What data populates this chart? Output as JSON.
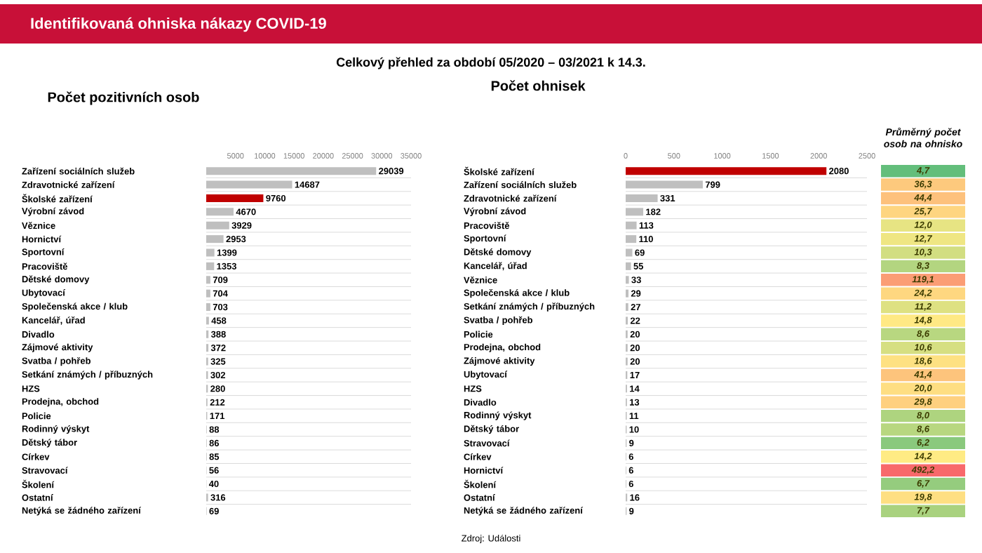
{
  "chart_data": [
    {
      "type": "bar",
      "orientation": "horizontal",
      "title": "Počet pozitivních osob",
      "categories": [
        "Zařízení sociálních služeb",
        "Zdravotnické zařízení",
        "Školské zařízení",
        "Výrobní závod",
        "Věznice",
        "Hornictví",
        "Sportovní",
        "Pracoviště",
        "Dětské domovy",
        "Ubytovací",
        "Společenská akce / klub",
        "Kancelář, úřad",
        "Divadlo",
        "Zájmové aktivity",
        "Svatba / pohřeb",
        "Setkání známých / příbuzných",
        "HZS",
        "Prodejna, obchod",
        "Policie",
        "Rodinný výskyt",
        "Dětský tábor",
        "Církev",
        "Stravovací",
        "Školení",
        "Ostatní",
        "Netýká se žádného zařízení"
      ],
      "values": [
        29039,
        14687,
        9760,
        4670,
        3929,
        2953,
        1399,
        1353,
        709,
        704,
        703,
        458,
        388,
        372,
        325,
        302,
        280,
        212,
        171,
        88,
        86,
        85,
        56,
        40,
        316,
        69
      ],
      "colors": [
        "#bfbfbf",
        "#bfbfbf",
        "#c00000",
        "#bfbfbf",
        "#bfbfbf",
        "#bfbfbf",
        "#bfbfbf",
        "#bfbfbf",
        "#bfbfbf",
        "#bfbfbf",
        "#bfbfbf",
        "#bfbfbf",
        "#bfbfbf",
        "#bfbfbf",
        "#bfbfbf",
        "#bfbfbf",
        "#bfbfbf",
        "#bfbfbf",
        "#bfbfbf",
        "#bfbfbf",
        "#bfbfbf",
        "#bfbfbf",
        "#bfbfbf",
        "#bfbfbf",
        "#bfbfbf",
        "#bfbfbf"
      ],
      "xlim": [
        0,
        35000
      ],
      "xticks": [
        5000,
        10000,
        15000,
        20000,
        25000,
        30000,
        35000
      ],
      "data_labels": true,
      "grid": "y"
    },
    {
      "type": "bar",
      "orientation": "horizontal",
      "title": "Počet ohnisek",
      "categories": [
        "Školské zařízení",
        "Zařízení sociálních služeb",
        "Zdravotnické zařízení",
        "Výrobní závod",
        "Pracoviště",
        "Sportovní",
        "Dětské domovy",
        "Kancelář, úřad",
        "Věznice",
        "Společenská akce / klub",
        "Setkání známých / příbuzných",
        "Svatba / pohřeb",
        "Policie",
        "Prodejna, obchod",
        "Zájmové aktivity",
        "Ubytovací",
        "HZS",
        "Divadlo",
        "Rodinný výskyt",
        "Dětský tábor",
        "Stravovací",
        "Církev",
        "Hornictví",
        "Školení",
        "Ostatní",
        "Netýká se žádného zařízení"
      ],
      "values": [
        2080,
        799,
        331,
        182,
        113,
        110,
        69,
        55,
        33,
        29,
        27,
        22,
        20,
        20,
        20,
        17,
        14,
        13,
        11,
        10,
        9,
        6,
        6,
        6,
        16,
        9
      ],
      "colors": [
        "#c00000",
        "#bfbfbf",
        "#bfbfbf",
        "#bfbfbf",
        "#bfbfbf",
        "#bfbfbf",
        "#bfbfbf",
        "#bfbfbf",
        "#bfbfbf",
        "#bfbfbf",
        "#bfbfbf",
        "#bfbfbf",
        "#bfbfbf",
        "#bfbfbf",
        "#bfbfbf",
        "#bfbfbf",
        "#bfbfbf",
        "#bfbfbf",
        "#bfbfbf",
        "#bfbfbf",
        "#bfbfbf",
        "#bfbfbf",
        "#bfbfbf",
        "#bfbfbf",
        "#bfbfbf",
        "#bfbfbf"
      ],
      "xlim": [
        0,
        2500
      ],
      "xticks": [
        0,
        500,
        1000,
        1500,
        2000,
        2500
      ],
      "data_labels": true,
      "grid": "y"
    },
    {
      "type": "heatmap",
      "title": "Průměrný počet osob na ohnisko",
      "categories": [
        null
      ],
      "y_categories": [
        null,
        null,
        null,
        null,
        null,
        null,
        null,
        null,
        null,
        null,
        null,
        null,
        null,
        null,
        null,
        null,
        null,
        null,
        null,
        null,
        null,
        null,
        null,
        null,
        null,
        null
      ],
      "cells": [
        [
          4.7
        ],
        [
          36.3
        ],
        [
          44.4
        ],
        [
          25.7
        ],
        [
          12.0
        ],
        [
          12.7
        ],
        [
          10.3
        ],
        [
          8.3
        ],
        [
          119.1
        ],
        [
          24.2
        ],
        [
          11.2
        ],
        [
          14.8
        ],
        [
          8.6
        ],
        [
          10.6
        ],
        [
          18.6
        ],
        [
          41.4
        ],
        [
          20.0
        ],
        [
          29.8
        ],
        [
          8.0
        ],
        [
          8.6
        ],
        [
          6.2
        ],
        [
          14.2
        ],
        [
          492.2
        ],
        [
          6.7
        ],
        [
          19.8
        ],
        [
          7.7
        ]
      ],
      "cell_labels": [
        [
          "4,7"
        ],
        [
          "36,3"
        ],
        [
          "44,4"
        ],
        [
          "25,7"
        ],
        [
          "12,0"
        ],
        [
          "12,7"
        ],
        [
          "10,3"
        ],
        [
          "8,3"
        ],
        [
          "119,1"
        ],
        [
          "24,2"
        ],
        [
          "11,2"
        ],
        [
          "14,8"
        ],
        [
          "8,6"
        ],
        [
          "10,6"
        ],
        [
          "18,6"
        ],
        [
          "41,4"
        ],
        [
          "20,0"
        ],
        [
          "29,8"
        ],
        [
          "8,0"
        ],
        [
          "8,6"
        ],
        [
          "6,2"
        ],
        [
          "14,2"
        ],
        [
          "492,2"
        ],
        [
          "6,7"
        ],
        [
          "19,8"
        ],
        [
          "7,7"
        ]
      ]
    },
    {
      "type": "other",
      "title": "Identifikovaná ohniska nákazy COVID-19",
      "subtitle": "Celkový přehled za období 05/2020 – 03/2021 k 14.3.",
      "annotations": [
        "Zdroj: Události"
      ]
    }
  ]
}
